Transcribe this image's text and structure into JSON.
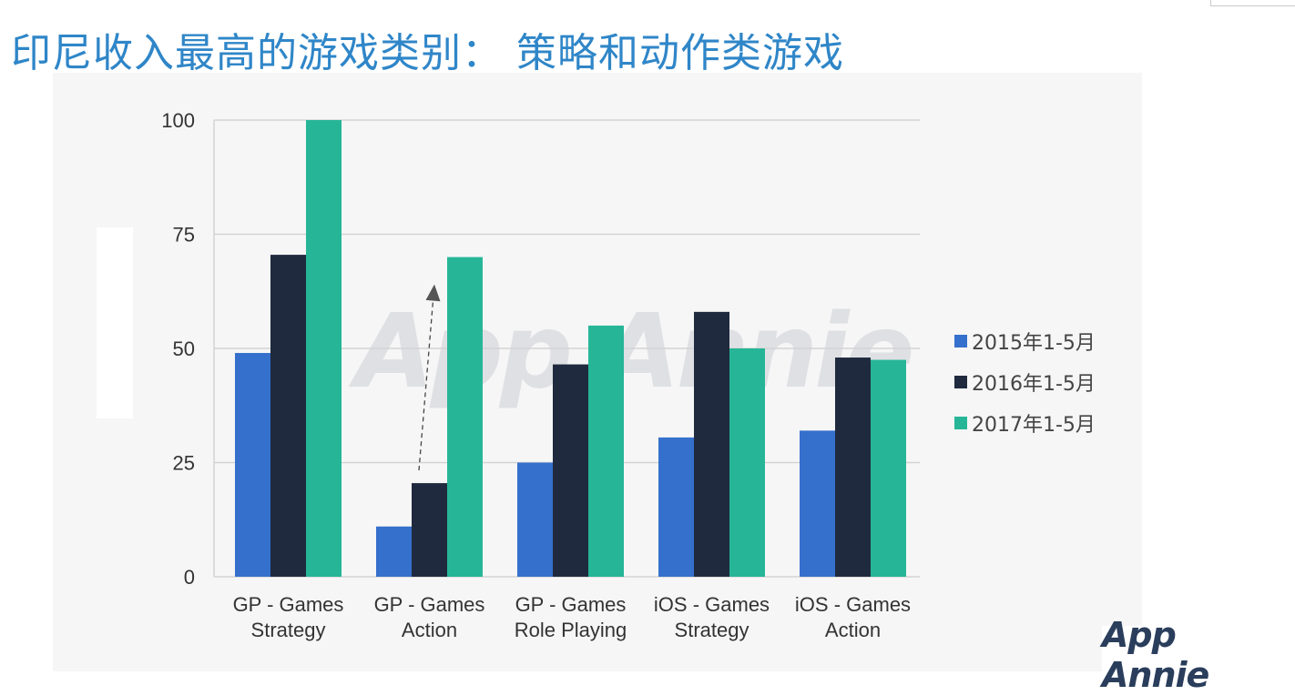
{
  "page": {
    "title": "印尼收入最高的游戏类别： 策略和动作类游戏",
    "watermark": "App Annie",
    "logo": "App Annie"
  },
  "colors": {
    "series_2015": "#3570cc",
    "series_2016": "#1f2a3e",
    "series_2017": "#26b697",
    "grid": "#d3d3d3",
    "axis_text": "#333333",
    "title": "#2f86c8"
  },
  "chart_data": {
    "type": "bar",
    "categories": [
      [
        "GP - Games",
        "Strategy"
      ],
      [
        "GP - Games",
        "Action"
      ],
      [
        "GP - Games",
        "Role Playing"
      ],
      [
        "iOS - Games",
        "Strategy"
      ],
      [
        "iOS - Games",
        "Action"
      ]
    ],
    "series": [
      {
        "name": "2015年1-5月",
        "values": [
          49,
          11,
          25,
          30.5,
          32
        ]
      },
      {
        "name": "2016年1-5月",
        "values": [
          70.5,
          20.5,
          46.5,
          58,
          48
        ]
      },
      {
        "name": "2017年1-5月",
        "values": [
          100,
          70,
          55,
          50,
          47.5
        ]
      }
    ],
    "ylim": [
      0,
      100
    ],
    "yticks": [
      "0",
      "25",
      "50",
      "75",
      "100"
    ],
    "grid": true,
    "legend": "right",
    "annotation": "dashed arrow from 2016 GP - Games Action bar up to 2017 GP - Games Action bar"
  }
}
